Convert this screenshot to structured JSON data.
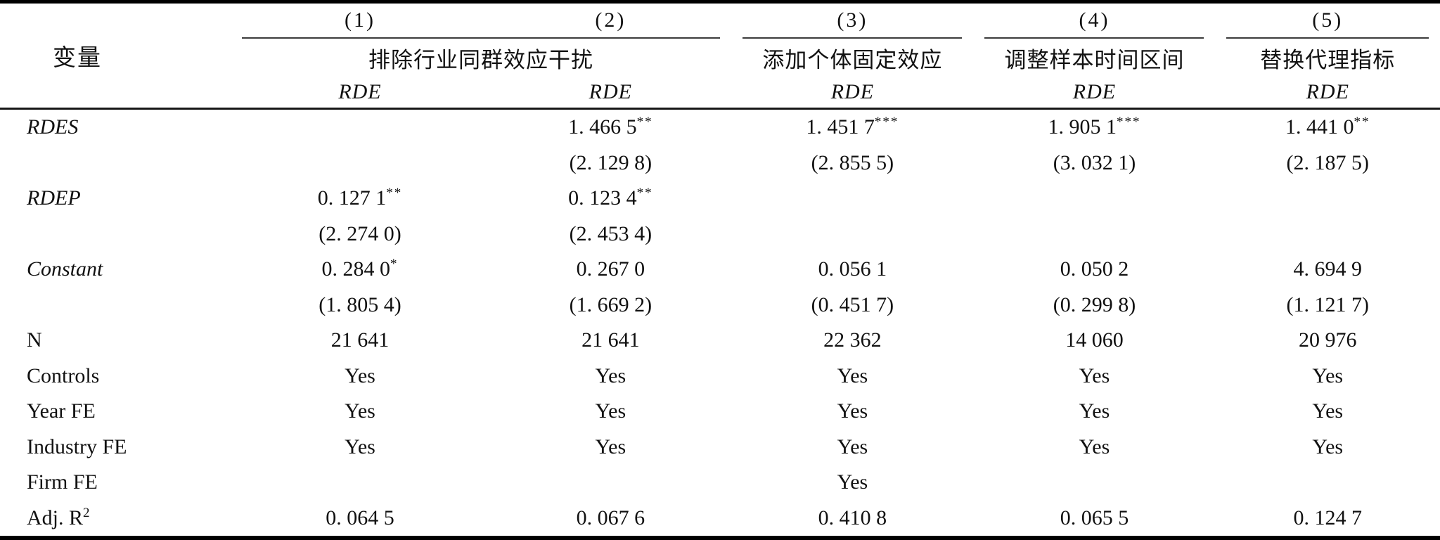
{
  "table": {
    "variable_header": "变量",
    "column_numbers": [
      "(1)",
      "(2)",
      "(3)",
      "(4)",
      "(5)"
    ],
    "groups": [
      {
        "label": "排除行业同群效应干扰",
        "span": 2
      },
      {
        "label": "添加个体固定效应",
        "span": 1
      },
      {
        "label": "调整样本时间区间",
        "span": 1
      },
      {
        "label": "替换代理指标",
        "span": 1
      }
    ],
    "dep_var_row": [
      "RDE",
      "RDE",
      "RDE",
      "RDE",
      "RDE"
    ],
    "rows": [
      {
        "label": "RDES",
        "label_style": "italic",
        "cells": [
          {
            "text": ""
          },
          {
            "text": "1. 466 5",
            "sup": "**"
          },
          {
            "text": "1. 451 7",
            "sup": "***"
          },
          {
            "text": "1. 905 1",
            "sup": "***"
          },
          {
            "text": "1. 441 0",
            "sup": "**"
          }
        ]
      },
      {
        "label": "",
        "cells": [
          {
            "text": ""
          },
          {
            "text": "(2. 129 8)"
          },
          {
            "text": "(2. 855 5)"
          },
          {
            "text": "(3. 032 1)"
          },
          {
            "text": "(2. 187 5)"
          }
        ]
      },
      {
        "label": "RDEP",
        "label_style": "italic",
        "cells": [
          {
            "text": "0. 127 1",
            "sup": "**"
          },
          {
            "text": "0. 123 4",
            "sup": "**"
          },
          {
            "text": ""
          },
          {
            "text": ""
          },
          {
            "text": ""
          }
        ]
      },
      {
        "label": "",
        "cells": [
          {
            "text": "(2. 274 0)"
          },
          {
            "text": "(2. 453 4)"
          },
          {
            "text": ""
          },
          {
            "text": ""
          },
          {
            "text": ""
          }
        ]
      },
      {
        "label": "Constant",
        "label_style": "italic",
        "cells": [
          {
            "text": "0. 284 0",
            "sup": "*"
          },
          {
            "text": "0. 267 0"
          },
          {
            "text": "0. 056 1"
          },
          {
            "text": "0. 050 2"
          },
          {
            "text": "4. 694 9"
          }
        ]
      },
      {
        "label": "",
        "cells": [
          {
            "text": "(1. 805 4)"
          },
          {
            "text": "(1. 669 2)"
          },
          {
            "text": "(0. 451 7)"
          },
          {
            "text": "(0. 299 8)"
          },
          {
            "text": "(1. 121 7)"
          }
        ]
      },
      {
        "label": "N",
        "cells": [
          {
            "text": "21 641"
          },
          {
            "text": "21 641"
          },
          {
            "text": "22 362"
          },
          {
            "text": "14 060"
          },
          {
            "text": "20 976"
          }
        ]
      },
      {
        "label": "Controls",
        "cells": [
          {
            "text": "Yes"
          },
          {
            "text": "Yes"
          },
          {
            "text": "Yes"
          },
          {
            "text": "Yes"
          },
          {
            "text": "Yes"
          }
        ]
      },
      {
        "label": "Year FE",
        "cells": [
          {
            "text": "Yes"
          },
          {
            "text": "Yes"
          },
          {
            "text": "Yes"
          },
          {
            "text": "Yes"
          },
          {
            "text": "Yes"
          }
        ]
      },
      {
        "label": "Industry FE",
        "cells": [
          {
            "text": "Yes"
          },
          {
            "text": "Yes"
          },
          {
            "text": "Yes"
          },
          {
            "text": "Yes"
          },
          {
            "text": "Yes"
          }
        ]
      },
      {
        "label": "Firm FE",
        "cells": [
          {
            "text": ""
          },
          {
            "text": ""
          },
          {
            "text": "Yes"
          },
          {
            "text": ""
          },
          {
            "text": ""
          }
        ]
      },
      {
        "label": "Adj. R",
        "label_sup": "2",
        "cells": [
          {
            "text": "0. 064 5"
          },
          {
            "text": "0. 067 6"
          },
          {
            "text": "0. 410 8"
          },
          {
            "text": "0. 065 5"
          },
          {
            "text": "0. 124 7"
          }
        ]
      }
    ]
  }
}
